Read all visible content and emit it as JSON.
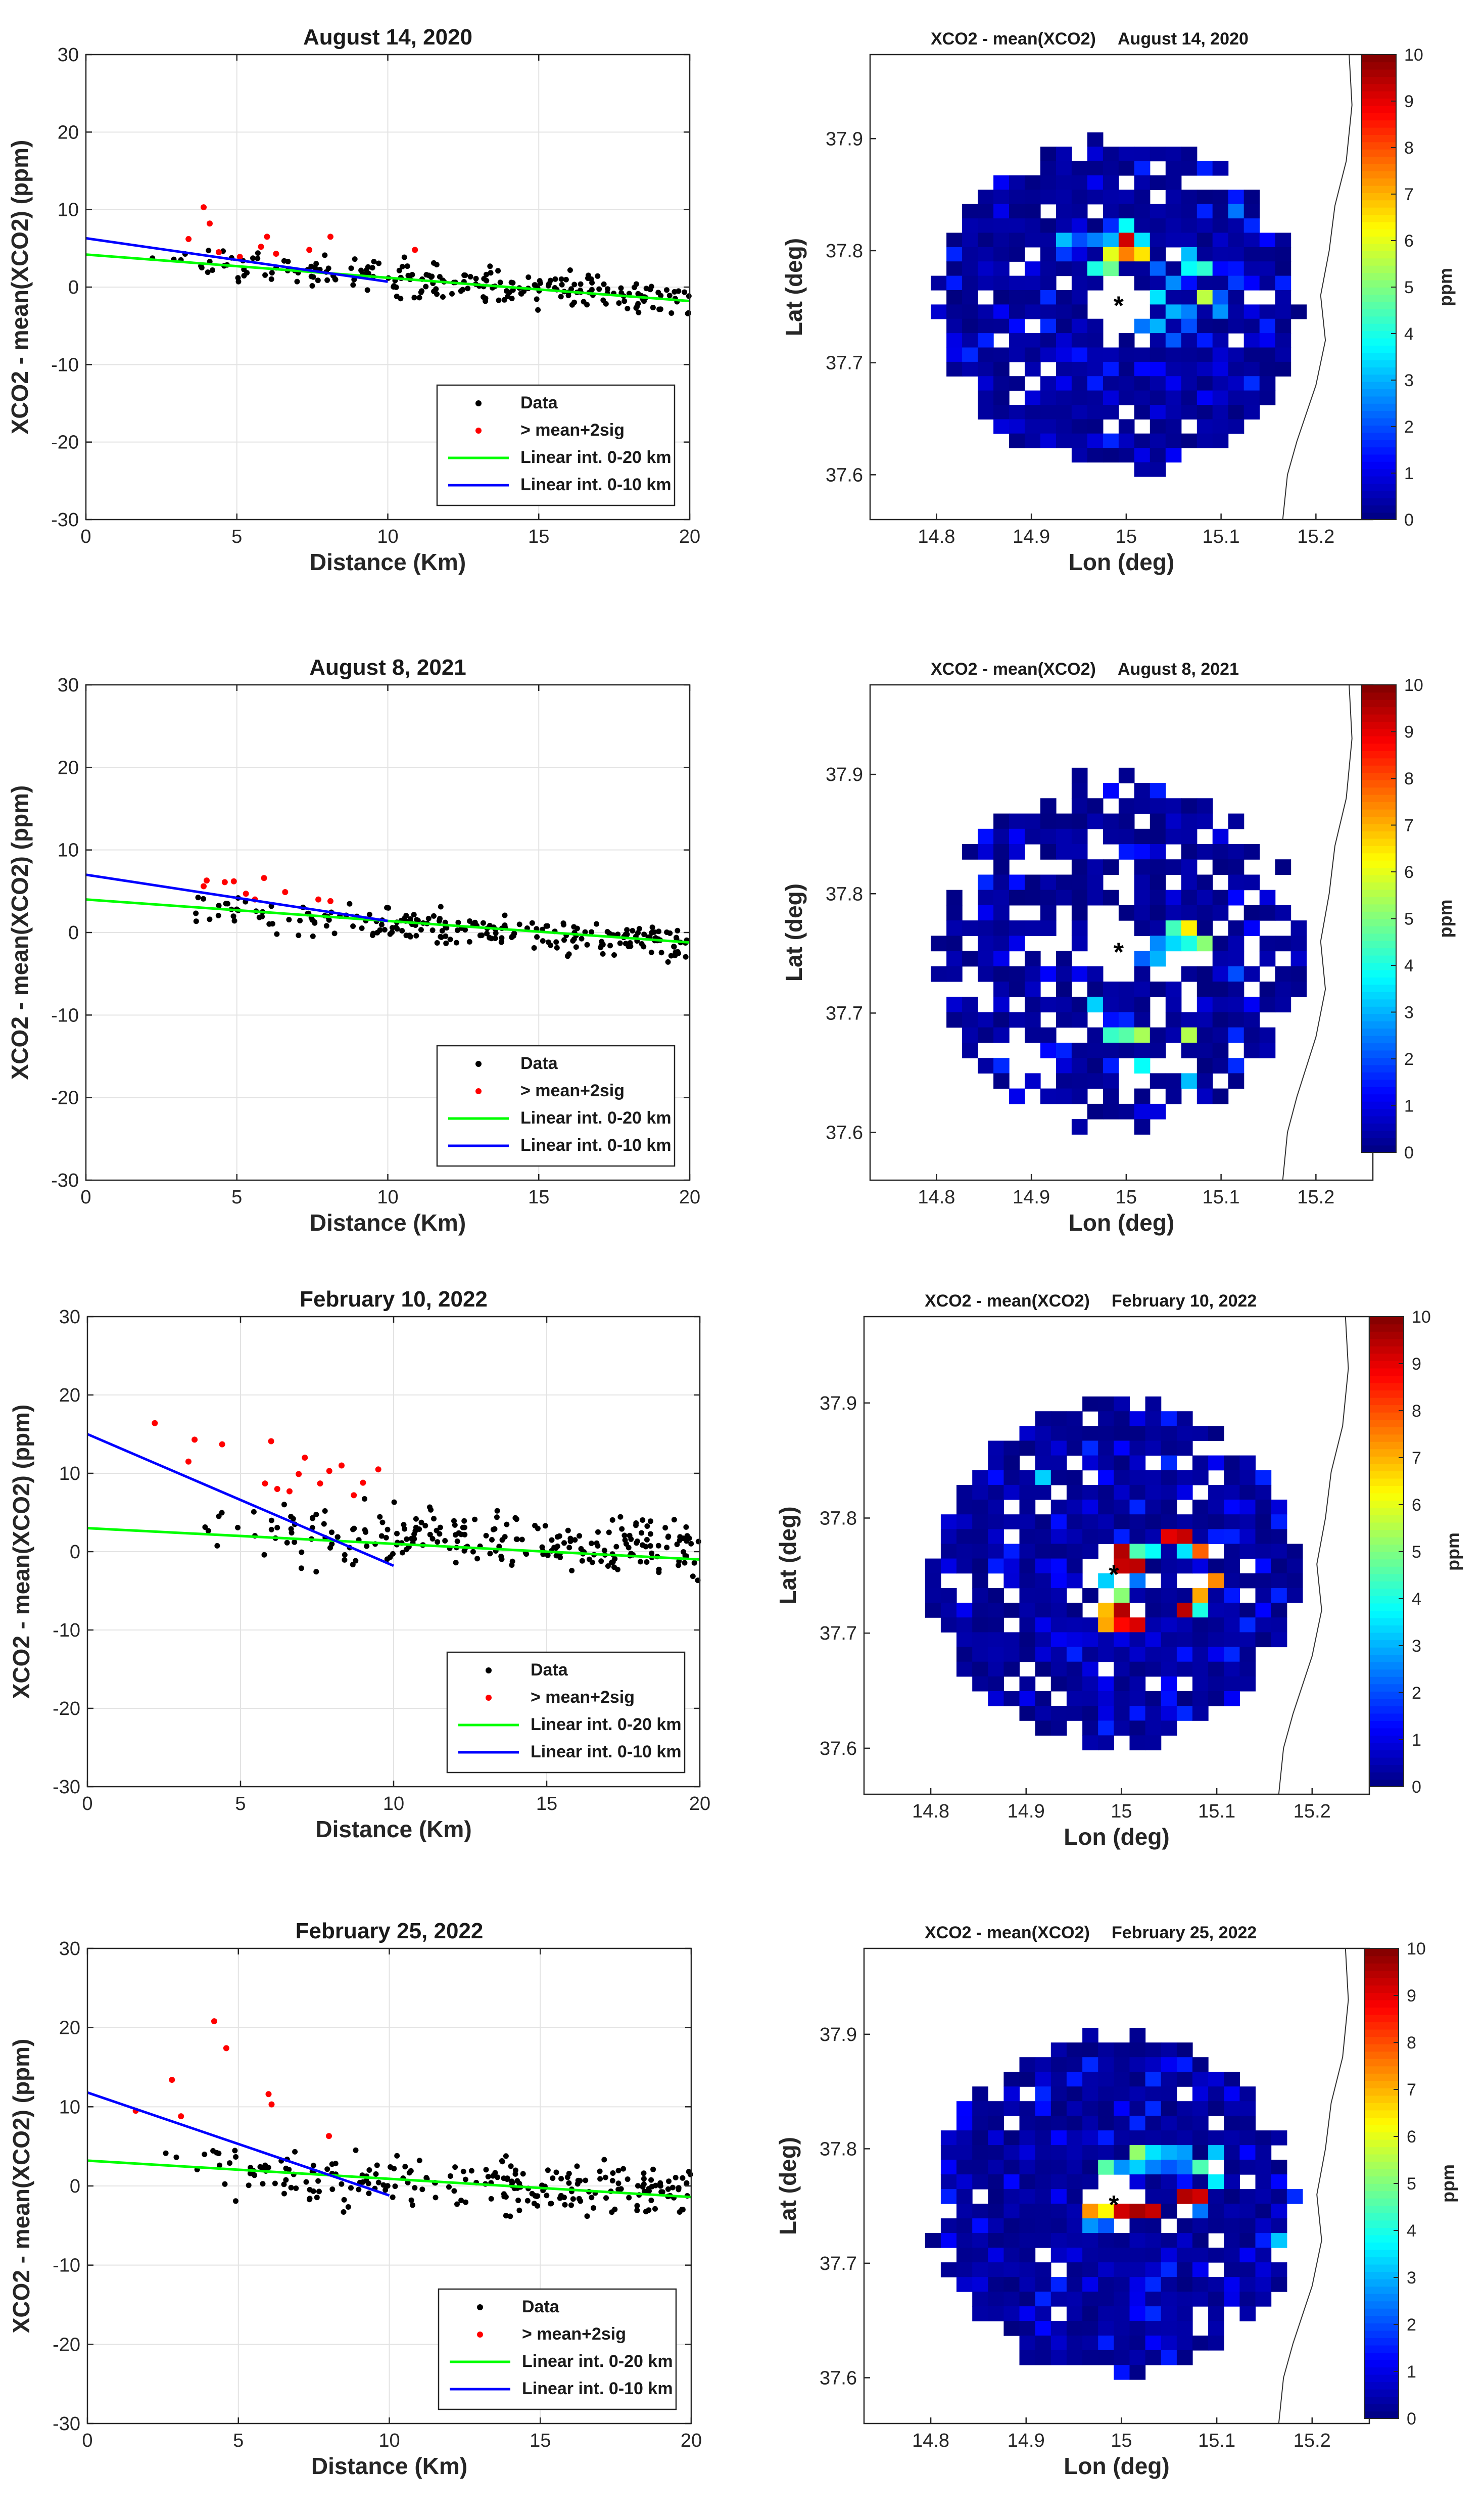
{
  "figure": {
    "panels": [
      "August 14, 2020",
      "August 8, 2021",
      "February 10, 2022",
      "February 25, 2022"
    ]
  },
  "scatter_common": {
    "xlabel": "Distance (Km)",
    "ylabel": "XCO2 - mean(XCO2) (ppm)",
    "xlim": [
      0,
      20
    ],
    "ylim": [
      -30,
      30
    ],
    "xticks": [
      "0",
      "5",
      "10",
      "15",
      "20"
    ],
    "yticks": [
      "30",
      "20",
      "10",
      "0",
      "-10",
      "-20",
      "-30"
    ],
    "legend": [
      "Data",
      "> mean+2sig",
      "Linear int. 0-20 km",
      "Linear int. 0-10 km"
    ],
    "colors": {
      "data": "#000000",
      "outlier": "#ff0000",
      "fit20": "#00ff00",
      "fit10": "#0000ff"
    }
  },
  "map_common": {
    "title_prefix": "XCO2 - mean(XCO2)",
    "xlabel": "Lon (deg)",
    "ylabel": "Lat (deg)",
    "xticks": [
      "14.8",
      "14.9",
      "15",
      "15.1",
      "15.2"
    ],
    "yticks": [
      "37.9",
      "37.8",
      "37.7",
      "37.6"
    ],
    "colorbar_label": "ppm",
    "colorbar_ticks": [
      "10",
      "9",
      "8",
      "7",
      "6",
      "5",
      "4",
      "3",
      "2",
      "1",
      "0"
    ],
    "clim": [
      0,
      10
    ],
    "colormap": "jet",
    "center_marker": "*"
  },
  "chart_data": [
    {
      "type": "scatter",
      "title": "August 14, 2020",
      "xlabel": "Distance (Km)",
      "ylabel": "XCO2 - mean(XCO2) (ppm)",
      "xlim": [
        0,
        20
      ],
      "ylim": [
        -30,
        30
      ],
      "outliers": [
        [
          3.4,
          6.2
        ],
        [
          3.9,
          10.3
        ],
        [
          4.1,
          8.2
        ],
        [
          4.4,
          4.5
        ],
        [
          5.1,
          3.9
        ],
        [
          5.8,
          5.2
        ],
        [
          6.0,
          6.5
        ],
        [
          6.3,
          4.3
        ],
        [
          7.4,
          4.8
        ],
        [
          8.1,
          6.5
        ],
        [
          10.9,
          4.8
        ]
      ],
      "fit_0_20": {
        "x": [
          0,
          20
        ],
        "y": [
          4.2,
          -1.8
        ]
      },
      "fit_0_10": {
        "x": [
          0,
          10
        ],
        "y": [
          6.3,
          0.7
        ]
      },
      "data_trend": {
        "x": [
          2,
          20
        ],
        "y_start": 3.5,
        "y_end": -1.5,
        "spread": 2.5,
        "n": 230
      }
    },
    {
      "type": "scatter",
      "title": "August 8, 2021",
      "xlabel": "Distance (Km)",
      "ylabel": "XCO2 - mean(XCO2) (ppm)",
      "xlim": [
        0,
        20
      ],
      "ylim": [
        -30,
        30
      ],
      "outliers": [
        [
          3.9,
          5.6
        ],
        [
          4.0,
          6.3
        ],
        [
          4.6,
          6.1
        ],
        [
          4.9,
          6.2
        ],
        [
          5.3,
          4.7
        ],
        [
          5.6,
          4.0
        ],
        [
          5.9,
          6.6
        ],
        [
          6.6,
          4.9
        ],
        [
          7.7,
          4.0
        ],
        [
          8.1,
          3.8
        ]
      ],
      "fit_0_20": {
        "x": [
          0,
          20
        ],
        "y": [
          4.0,
          -1.2
        ]
      },
      "fit_0_10": {
        "x": [
          0,
          10
        ],
        "y": [
          7.0,
          1.4
        ]
      },
      "data_trend": {
        "x": [
          3.5,
          20
        ],
        "y_start": 2.5,
        "y_end": -1.2,
        "spread": 2.2,
        "n": 230
      }
    },
    {
      "type": "scatter",
      "title": "February 10, 2022",
      "xlabel": "Distance (Km)",
      "ylabel": "XCO2 - mean(XCO2) (ppm)",
      "xlim": [
        0,
        20
      ],
      "ylim": [
        -30,
        30
      ],
      "outliers": [
        [
          2.2,
          16.4
        ],
        [
          3.3,
          11.5
        ],
        [
          3.5,
          14.3
        ],
        [
          4.4,
          13.7
        ],
        [
          5.8,
          8.7
        ],
        [
          6.0,
          14.1
        ],
        [
          6.2,
          8.0
        ],
        [
          6.6,
          7.7
        ],
        [
          6.9,
          9.9
        ],
        [
          7.1,
          12.0
        ],
        [
          7.6,
          8.7
        ],
        [
          7.9,
          10.3
        ],
        [
          8.3,
          11.0
        ],
        [
          8.7,
          7.2
        ],
        [
          9.0,
          8.8
        ],
        [
          9.5,
          10.5
        ]
      ],
      "fit_0_20": {
        "x": [
          0,
          20
        ],
        "y": [
          3.0,
          -1.0
        ]
      },
      "fit_0_10": {
        "x": [
          0,
          10
        ],
        "y": [
          15.0,
          -1.8
        ]
      },
      "data_trend": {
        "x": [
          3.8,
          20
        ],
        "y_start": 3.0,
        "y_end": 0.3,
        "spread": 4.0,
        "n": 240
      }
    },
    {
      "type": "scatter",
      "title": "February 25, 2022",
      "xlabel": "Distance (Km)",
      "ylabel": "XCO2 - mean(XCO2) (ppm)",
      "xlim": [
        0,
        20
      ],
      "ylim": [
        -30,
        30
      ],
      "outliers": [
        [
          1.6,
          9.5
        ],
        [
          2.8,
          13.4
        ],
        [
          3.1,
          8.8
        ],
        [
          4.2,
          20.8
        ],
        [
          4.6,
          17.4
        ],
        [
          6.0,
          11.6
        ],
        [
          6.1,
          10.3
        ],
        [
          8.0,
          6.3
        ]
      ],
      "fit_0_20": {
        "x": [
          0,
          20
        ],
        "y": [
          3.2,
          -1.4
        ]
      },
      "fit_0_10": {
        "x": [
          0,
          10
        ],
        "y": [
          11.8,
          -1.2
        ]
      },
      "data_trend": {
        "x": [
          2.5,
          20
        ],
        "y_start": 2.0,
        "y_end": -0.8,
        "spread": 3.6,
        "n": 240
      }
    },
    {
      "type": "heatmap",
      "title": "XCO2 - mean(XCO2)",
      "date": "August 14, 2020",
      "xlabel": "Lon (deg)",
      "ylabel": "Lat (deg)",
      "clim": [
        0,
        10
      ],
      "colorbar_label": "ppm",
      "hot_cells": [
        [
          12,
          7,
          9.2
        ],
        [
          12,
          8,
          7.5
        ],
        [
          11,
          8,
          6.0
        ],
        [
          11,
          9,
          4.8
        ],
        [
          13,
          8,
          6.5
        ],
        [
          10,
          9,
          4.0
        ],
        [
          13,
          7,
          3.5
        ],
        [
          12,
          6,
          3.8
        ],
        [
          11,
          7,
          3.0
        ],
        [
          10,
          7,
          2.5
        ],
        [
          14,
          11,
          3.5
        ],
        [
          17,
          11,
          5.6
        ],
        [
          17,
          9,
          4.2
        ],
        [
          16,
          8,
          3.1
        ],
        [
          16,
          9,
          3.8
        ],
        [
          15,
          10,
          2.6
        ],
        [
          14,
          9,
          2.2
        ],
        [
          19,
          10,
          1.8
        ],
        [
          18,
          11,
          2.1
        ],
        [
          15,
          12,
          3.0
        ],
        [
          16,
          12,
          2.5
        ],
        [
          18,
          12,
          2.7
        ],
        [
          16,
          13,
          2.0
        ],
        [
          17,
          14,
          1.5
        ],
        [
          14,
          13,
          3.0
        ],
        [
          13,
          13,
          2.4
        ],
        [
          15,
          14,
          2.1
        ],
        [
          9,
          7,
          2.0
        ],
        [
          8,
          7,
          3.1
        ],
        [
          8,
          8,
          1.8
        ],
        [
          19,
          5,
          2.4
        ],
        [
          22,
          5,
          2.0
        ]
      ],
      "holes_ratio": 0.1,
      "seed": 11
    },
    {
      "type": "heatmap",
      "title": "XCO2 - mean(XCO2)",
      "date": "August 8, 2021",
      "xlabel": "Lon (deg)",
      "ylabel": "Lat (deg)",
      "clim": [
        0,
        10
      ],
      "colorbar_label": "ppm",
      "hot_cells": [
        [
          16,
          10,
          6.4
        ],
        [
          15,
          10,
          4.4
        ],
        [
          15,
          11,
          3.4
        ],
        [
          17,
          11,
          5.1
        ],
        [
          16,
          11,
          4.0
        ],
        [
          14,
          11,
          2.6
        ],
        [
          13,
          12,
          2.2
        ],
        [
          14,
          12,
          3.0
        ],
        [
          11,
          17,
          4.3
        ],
        [
          12,
          17,
          4.6
        ],
        [
          13,
          17,
          5.4
        ],
        [
          16,
          17,
          5.5
        ],
        [
          10,
          15,
          3.3
        ],
        [
          16,
          20,
          3.1
        ],
        [
          13,
          19,
          3.8
        ],
        [
          19,
          13,
          2.0
        ]
      ],
      "holes_ratio": 0.3,
      "seed": 23
    },
    {
      "type": "heatmap",
      "title": "XCO2 - mean(XCO2)",
      "date": "February 10, 2022",
      "xlabel": "Lon (deg)",
      "ylabel": "Lat (deg)",
      "clim": [
        0,
        10
      ],
      "colorbar_label": "ppm",
      "hot_cells": [
        [
          12,
          10,
          9.5
        ],
        [
          12,
          11,
          9.3
        ],
        [
          13,
          11,
          9.4
        ],
        [
          15,
          9,
          9.0
        ],
        [
          16,
          9,
          9.3
        ],
        [
          17,
          10,
          7.8
        ],
        [
          16,
          10,
          3.5
        ],
        [
          14,
          10,
          3.8
        ],
        [
          13,
          10,
          4.5
        ],
        [
          12,
          13,
          5.1
        ],
        [
          11,
          14,
          6.9
        ],
        [
          12,
          14,
          9.5
        ],
        [
          11,
          15,
          7.1
        ],
        [
          12,
          15,
          8.7
        ],
        [
          13,
          15,
          9.1
        ],
        [
          16,
          14,
          9.4
        ],
        [
          17,
          13,
          7.1
        ],
        [
          18,
          12,
          7.4
        ],
        [
          17,
          14,
          4.0
        ],
        [
          11,
          12,
          3.3
        ],
        [
          13,
          12,
          2.4
        ],
        [
          7,
          5,
          3.3
        ],
        [
          18,
          9,
          1.5
        ]
      ],
      "holes_ratio": 0.1,
      "seed": 37
    },
    {
      "type": "heatmap",
      "title": "XCO2 - mean(XCO2)",
      "date": "February 25, 2022",
      "xlabel": "Lon (deg)",
      "ylabel": "Lat (deg)",
      "clim": [
        0,
        10
      ],
      "colorbar_label": "ppm",
      "hot_cells": [
        [
          11,
          12,
          6.3
        ],
        [
          12,
          12,
          9.2
        ],
        [
          13,
          12,
          9.6
        ],
        [
          14,
          12,
          9.3
        ],
        [
          10,
          12,
          7.3
        ],
        [
          16,
          11,
          9.5
        ],
        [
          17,
          11,
          9.2
        ],
        [
          18,
          10,
          3.6
        ],
        [
          13,
          8,
          5.2
        ],
        [
          14,
          8,
          3.5
        ],
        [
          15,
          8,
          3.0
        ],
        [
          11,
          9,
          4.6
        ],
        [
          12,
          9,
          2.7
        ],
        [
          16,
          8,
          2.8
        ],
        [
          17,
          9,
          4.5
        ],
        [
          13,
          9,
          3.3
        ],
        [
          14,
          9,
          2.5
        ],
        [
          15,
          9,
          2.1
        ],
        [
          16,
          9,
          2.4
        ],
        [
          18,
          8,
          3.2
        ],
        [
          10,
          13,
          2.7
        ],
        [
          11,
          13,
          2.1
        ],
        [
          17,
          12,
          2.4
        ],
        [
          22,
          14,
          3.2
        ],
        [
          11,
          7,
          1.5
        ],
        [
          13,
          6,
          1.6
        ]
      ],
      "holes_ratio": 0.06,
      "seed": 51
    }
  ]
}
